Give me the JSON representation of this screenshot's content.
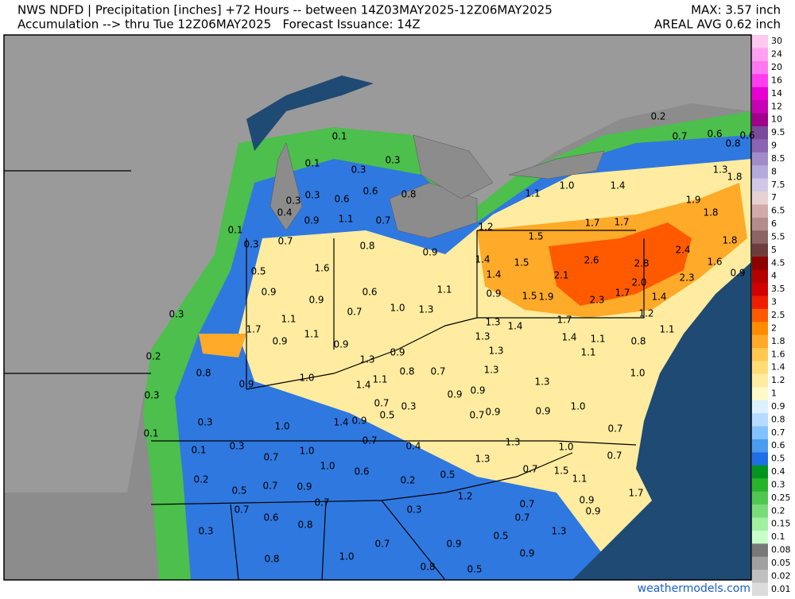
{
  "header": {
    "line1": "NWS NDFD | Precipitation [inches] +72 Hours -- between 14Z03MAY2025-12Z06MAY2025",
    "line2": "Accumulation --> thru Tue 12Z06MAY2025   Forecast Issuance: 14Z",
    "max": "MAX: 3.57 inch",
    "areal_avg": "AREAL AVG 0.62 inch"
  },
  "legend": [
    {
      "label": "30",
      "color": "#ffc8f0"
    },
    {
      "label": "24",
      "color": "#ffa0f0"
    },
    {
      "label": "20",
      "color": "#ff78f0"
    },
    {
      "label": "16",
      "color": "#ff3cf0"
    },
    {
      "label": "14",
      "color": "#e600d2"
    },
    {
      "label": "12",
      "color": "#c800b4"
    },
    {
      "label": "10",
      "color": "#a0008c"
    },
    {
      "label": "9.5",
      "color": "#7a4a9c"
    },
    {
      "label": "9",
      "color": "#8c64b4"
    },
    {
      "label": "8.5",
      "color": "#a08cc8"
    },
    {
      "label": "8",
      "color": "#b4aadc"
    },
    {
      "label": "7.5",
      "color": "#d2c8e6"
    },
    {
      "label": "7",
      "color": "#e6d2d2"
    },
    {
      "label": "6.5",
      "color": "#d2aaaa"
    },
    {
      "label": "6",
      "color": "#b48c8c"
    },
    {
      "label": "5.5",
      "color": "#8c6464"
    },
    {
      "label": "5",
      "color": "#6e3c3c"
    },
    {
      "label": "4.5",
      "color": "#8c0000"
    },
    {
      "label": "4",
      "color": "#b40000"
    },
    {
      "label": "3.5",
      "color": "#d20000"
    },
    {
      "label": "3",
      "color": "#f01e00"
    },
    {
      "label": "2.5",
      "color": "#ff5a00"
    },
    {
      "label": "2",
      "color": "#ff8c00"
    },
    {
      "label": "1.8",
      "color": "#ffaa28"
    },
    {
      "label": "1.6",
      "color": "#ffc850"
    },
    {
      "label": "1.4",
      "color": "#ffdc78"
    },
    {
      "label": "1.2",
      "color": "#ffeca0"
    },
    {
      "label": "1",
      "color": "#fff8c8"
    },
    {
      "label": "0.9",
      "color": "#dcf0ff"
    },
    {
      "label": "0.8",
      "color": "#b4dcff"
    },
    {
      "label": "0.7",
      "color": "#82c3ff"
    },
    {
      "label": "0.6",
      "color": "#4b9bf0"
    },
    {
      "label": "0.5",
      "color": "#1e6ee6"
    },
    {
      "label": "0.4",
      "color": "#00961e"
    },
    {
      "label": "0.3",
      "color": "#28b428"
    },
    {
      "label": "0.25",
      "color": "#50c850"
    },
    {
      "label": "0.2",
      "color": "#78dc78"
    },
    {
      "label": "0.15",
      "color": "#a0f0a0"
    },
    {
      "label": "0.1",
      "color": "#c8ffc8"
    },
    {
      "label": "0.08",
      "color": "#787878"
    },
    {
      "label": "0.05",
      "color": "#a0a0a0"
    },
    {
      "label": "0.02",
      "color": "#c0c0c0"
    },
    {
      "label": "0.01",
      "color": "#dcdcdc"
    }
  ],
  "map_labels": [
    "0.1",
    "0.1",
    "0.3",
    "0.3",
    "0.3",
    "0.3",
    "0.4",
    "0.6",
    "0.6",
    "0.8",
    "0.9",
    "1.1",
    "0.7",
    "0.1",
    "0.3",
    "0.7",
    "0.8",
    "0.9",
    "1.2",
    "1.1",
    "1.0",
    "1.4",
    "1.5",
    "1.7",
    "1.7",
    "1.9",
    "1.8",
    "1.8",
    "2.4",
    "1.6",
    "0.9",
    "2.3",
    "1.3",
    "1.8",
    "0.6",
    "0.8",
    "0.6",
    "0.2",
    "0.7",
    "0.5",
    "1.6",
    "0.9",
    "0.9",
    "0.6",
    "0.7",
    "1.0",
    "1.3",
    "1.1",
    "1.4",
    "1.5",
    "1.4",
    "2.6",
    "2.8",
    "2.1",
    "2.0",
    "1.5",
    "1.9",
    "2.3",
    "1.7",
    "1.4",
    "0.9",
    "0.3",
    "1.7",
    "1.1",
    "0.9",
    "1.1",
    "0.9",
    "1.3",
    "1.4",
    "1.7",
    "1.2",
    "1.1",
    "0.8",
    "1.3",
    "1.4",
    "1.1",
    "1.1",
    "1.0",
    "0.2",
    "0.8",
    "0.9",
    "1.0",
    "1.3",
    "0.9",
    "1.4",
    "1.1",
    "0.8",
    "0.7",
    "1.3",
    "1.3",
    "1.3",
    "0.3",
    "0.3",
    "0.7",
    "0.5",
    "0.3",
    "0.9",
    "0.9",
    "0.7",
    "0.9",
    "0.9",
    "1.0",
    "0.7",
    "0.1",
    "1.0",
    "1.4",
    "0.9",
    "0.7",
    "0.4",
    "0.1",
    "0.3",
    "0.7",
    "1.0",
    "1.0",
    "0.6",
    "0.5",
    "1.3",
    "1.3",
    "1.0",
    "0.7",
    "1.5",
    "1.1",
    "0.7",
    "0.2",
    "0.5",
    "0.7",
    "0.9",
    "0.2",
    "1.2",
    "0.7",
    "0.7",
    "0.6",
    "0.8",
    "0.3",
    "0.7",
    "0.9",
    "0.7",
    "0.9",
    "1.7",
    "0.3",
    "1.3",
    "0.5",
    "0.7",
    "0.9",
    "0.8",
    "1.0",
    "0.9",
    "0.8",
    "0.5"
  ],
  "footer": "weathermodels.com"
}
